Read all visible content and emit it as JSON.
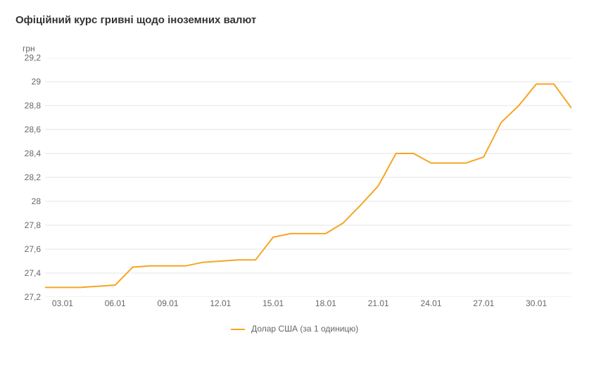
{
  "title": "Офіційний курс гривні щодо іноземних валют",
  "y_axis_title": "грн",
  "chart": {
    "type": "line",
    "background_color": "#ffffff",
    "grid_color": "#e6e6e6",
    "text_color": "#666666",
    "title_color": "#333333",
    "line_color": "#f5a623",
    "line_width": 2,
    "y_min": 27.2,
    "y_max": 29.2,
    "y_ticks": [
      27.2,
      27.4,
      27.6,
      27.8,
      28.0,
      28.2,
      28.4,
      28.6,
      28.8,
      29.0,
      29.2
    ],
    "y_tick_labels": [
      "27,2",
      "27,4",
      "27,6",
      "27,8",
      "28",
      "28,2",
      "28,4",
      "28,6",
      "28,8",
      "29",
      "29,2"
    ],
    "x_ticks": [
      2,
      5,
      8,
      11,
      14,
      17,
      20,
      23,
      26,
      29
    ],
    "x_tick_labels": [
      "03.01",
      "06.01",
      "09.01",
      "12.01",
      "15.01",
      "18.01",
      "21.01",
      "24.01",
      "27.01",
      "30.01"
    ],
    "x_min": 1,
    "x_max": 31,
    "series_name": "Долар США (за 1 одиницю)",
    "data": [
      {
        "x": 1,
        "y": 27.28
      },
      {
        "x": 2,
        "y": 27.28
      },
      {
        "x": 3,
        "y": 27.28
      },
      {
        "x": 4,
        "y": 27.29
      },
      {
        "x": 5,
        "y": 27.3
      },
      {
        "x": 6,
        "y": 27.45
      },
      {
        "x": 7,
        "y": 27.46
      },
      {
        "x": 8,
        "y": 27.46
      },
      {
        "x": 9,
        "y": 27.46
      },
      {
        "x": 10,
        "y": 27.49
      },
      {
        "x": 11,
        "y": 27.5
      },
      {
        "x": 12,
        "y": 27.51
      },
      {
        "x": 13,
        "y": 27.51
      },
      {
        "x": 14,
        "y": 27.7
      },
      {
        "x": 15,
        "y": 27.73
      },
      {
        "x": 16,
        "y": 27.73
      },
      {
        "x": 17,
        "y": 27.73
      },
      {
        "x": 18,
        "y": 27.82
      },
      {
        "x": 19,
        "y": 27.97
      },
      {
        "x": 20,
        "y": 28.13
      },
      {
        "x": 21,
        "y": 28.4
      },
      {
        "x": 22,
        "y": 28.4
      },
      {
        "x": 23,
        "y": 28.32
      },
      {
        "x": 24,
        "y": 28.32
      },
      {
        "x": 25,
        "y": 28.32
      },
      {
        "x": 26,
        "y": 28.37
      },
      {
        "x": 27,
        "y": 28.66
      },
      {
        "x": 28,
        "y": 28.8
      },
      {
        "x": 29,
        "y": 28.98
      },
      {
        "x": 30,
        "y": 28.98
      },
      {
        "x": 31,
        "y": 28.78
      }
    ]
  },
  "legend_label": "Долар США (за 1 одиницю)"
}
